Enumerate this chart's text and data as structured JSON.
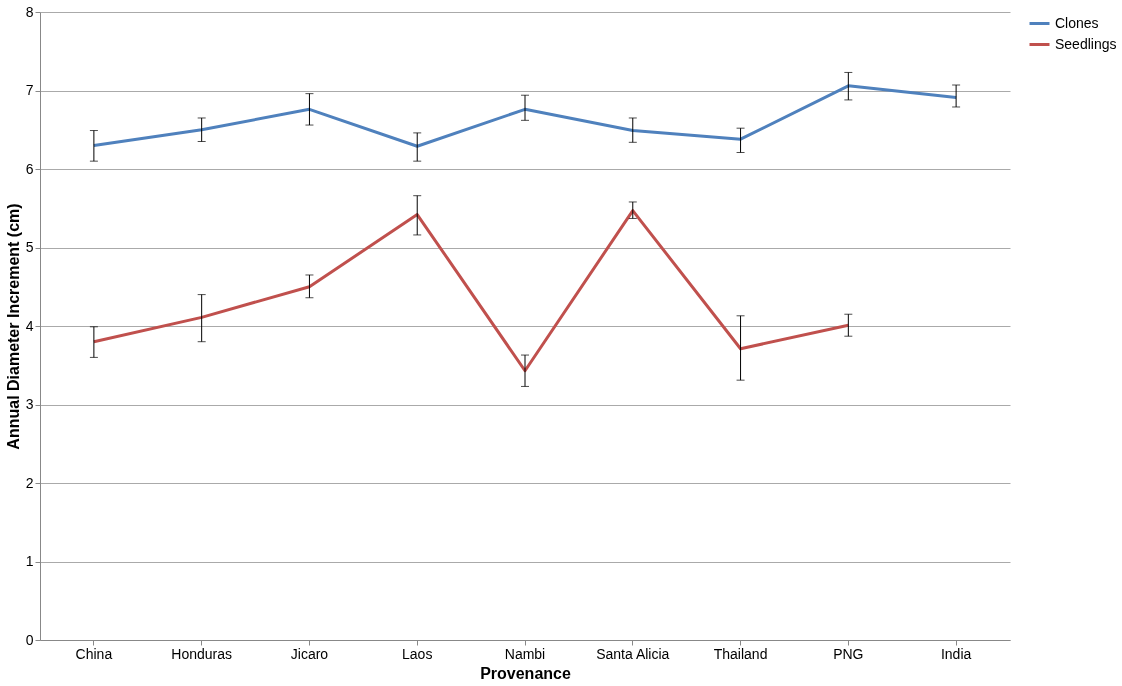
{
  "chart_data": {
    "type": "line",
    "xlabel": "Provenance",
    "ylabel": "Annual Diameter Increment (cm)",
    "categories": [
      "China",
      "Honduras",
      "Jicaro",
      "Laos",
      "Nambi",
      "Santa Alicia",
      "Thailand",
      "PNG",
      "India"
    ],
    "series": [
      {
        "name": "Clones",
        "color": "#4f81bd",
        "values": [
          6.3,
          6.5,
          6.76,
          6.29,
          6.76,
          6.49,
          6.38,
          7.06,
          6.91
        ],
        "errors": [
          [
            6.1,
            6.49
          ],
          [
            6.35,
            6.65
          ],
          [
            6.56,
            6.96
          ],
          [
            6.1,
            6.46
          ],
          [
            6.62,
            6.94
          ],
          [
            6.34,
            6.65
          ],
          [
            6.21,
            6.52
          ],
          [
            6.88,
            7.23
          ],
          [
            6.79,
            7.07
          ]
        ]
      },
      {
        "name": "Seedlings",
        "color": "#c0504d",
        "values": [
          3.8,
          4.11,
          4.5,
          5.42,
          3.43,
          5.47,
          3.71,
          4.01,
          null
        ],
        "errors": [
          [
            3.6,
            3.99
          ],
          [
            3.8,
            4.4
          ],
          [
            4.36,
            4.65
          ],
          [
            5.16,
            5.66
          ],
          [
            3.23,
            3.63
          ],
          [
            5.37,
            5.58
          ],
          [
            3.31,
            4.13
          ],
          [
            3.87,
            4.15
          ],
          null
        ]
      }
    ],
    "ylim": [
      0,
      8
    ],
    "yticks": [
      0,
      1,
      2,
      3,
      4,
      5,
      6,
      7,
      8
    ],
    "grid": "y",
    "legend": "right",
    "marker": "none",
    "line_style": "solid"
  }
}
